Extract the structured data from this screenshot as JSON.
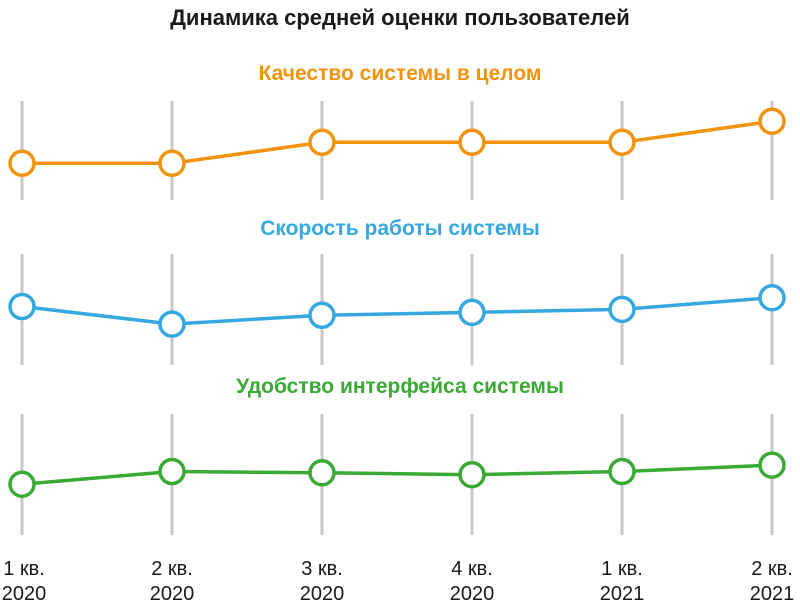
{
  "chart_data": {
    "type": "line",
    "title": "Динамика средней оценки пользователей",
    "x": [
      {
        "line1": "1 кв.",
        "line2": "2020"
      },
      {
        "line1": "2 кв.",
        "line2": "2020"
      },
      {
        "line1": "3 кв.",
        "line2": "2020"
      },
      {
        "line1": "4 кв.",
        "line2": "2020"
      },
      {
        "line1": "1 кв.",
        "line2": "2021"
      },
      {
        "line1": "2 кв.",
        "line2": "2021"
      }
    ],
    "grid": "vertical",
    "series": [
      {
        "name": "Качество системы в целом",
        "color": "#F0930E",
        "values": [
          3.2,
          3.2,
          3.6,
          3.6,
          3.6,
          4.0
        ]
      },
      {
        "name": "Скорость работы системы",
        "color": "#36A8E0",
        "values": [
          3.5,
          3.2,
          3.35,
          3.4,
          3.45,
          3.65
        ]
      },
      {
        "name": "Удобство интерфейса системы",
        "color": "#3AA935",
        "values": [
          3.3,
          3.5,
          3.48,
          3.45,
          3.5,
          3.6
        ]
      }
    ],
    "ylim": [
      2.5,
      4.5
    ]
  }
}
